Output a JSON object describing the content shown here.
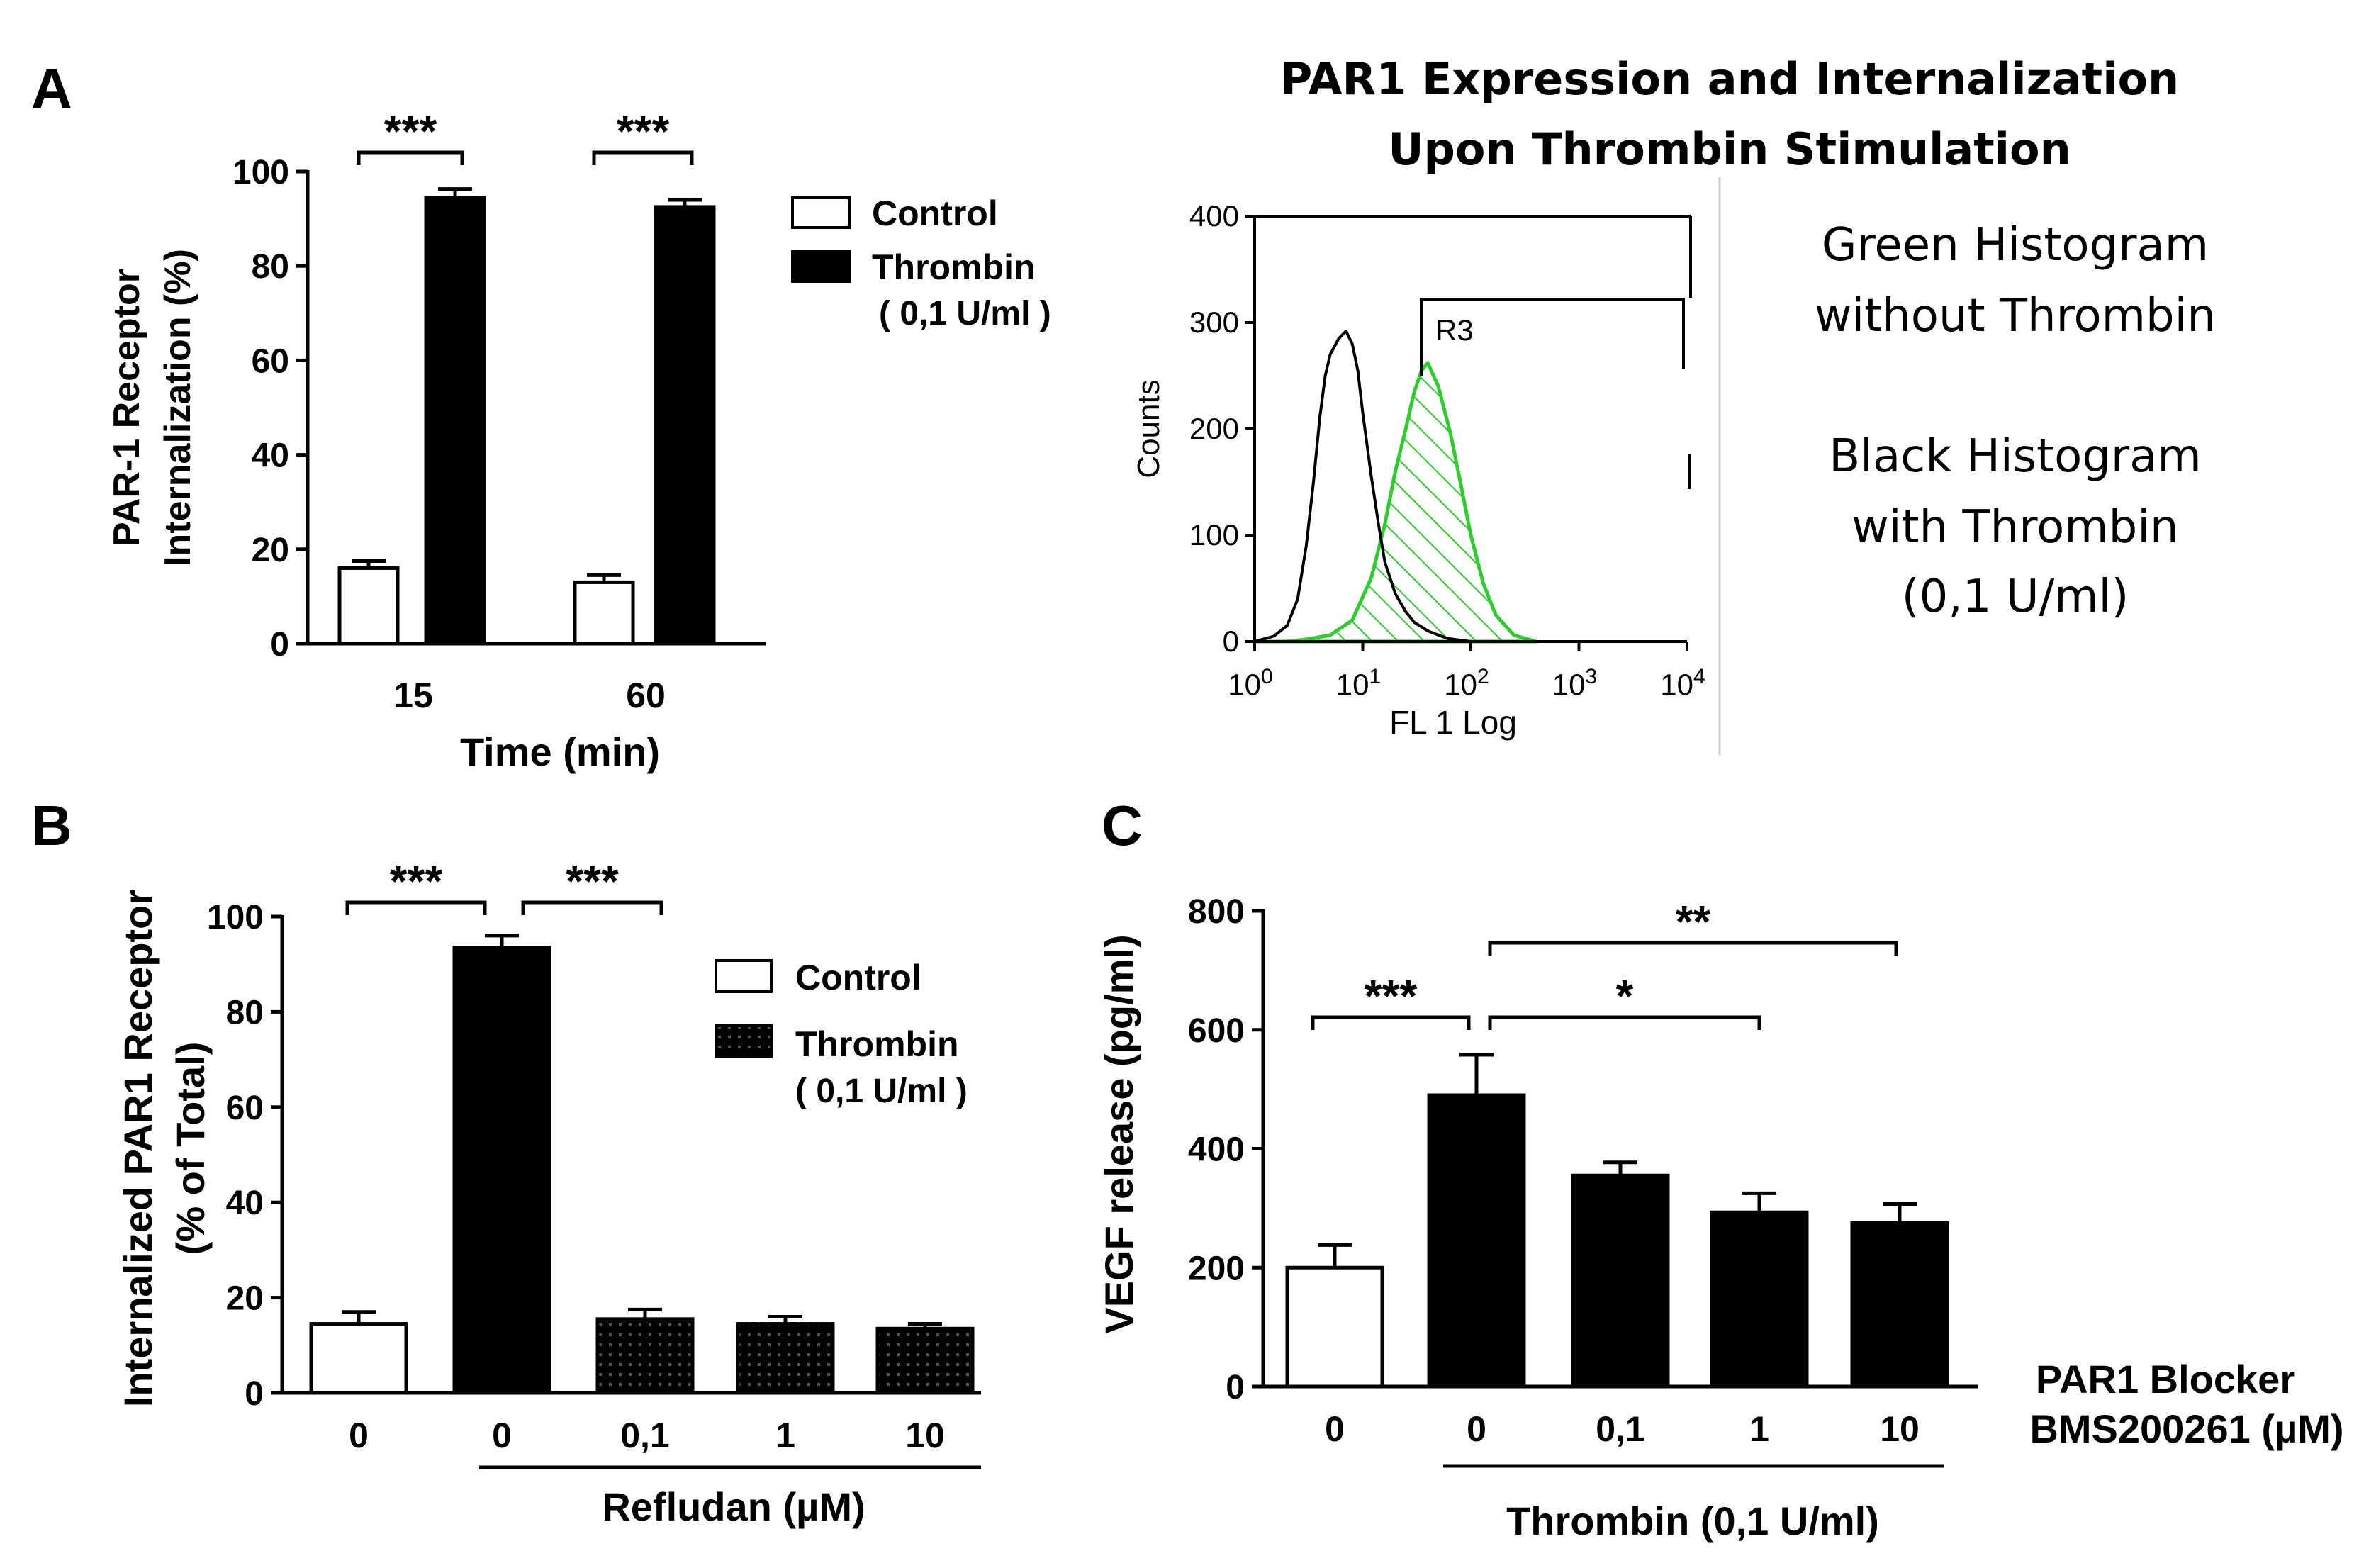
{
  "panels": {
    "A": {
      "letter": "A"
    },
    "B": {
      "letter": "B"
    },
    "C": {
      "letter": "C"
    }
  },
  "chart_data": [
    {
      "id": "A",
      "type": "bar",
      "ylabel_line1": "PAR-1 Receptor",
      "ylabel_line2": "Internalization (%)",
      "xlabel": "Time (min)",
      "categories": [
        "15",
        "60"
      ],
      "ylim": [
        0,
        100
      ],
      "yticks": [
        0,
        20,
        40,
        60,
        80,
        100
      ],
      "series": [
        {
          "name": "Control",
          "values": [
            16,
            13
          ],
          "errors": [
            1.5,
            1.5
          ],
          "fill": "#ffffff"
        },
        {
          "name": "Thrombin",
          "values": [
            94.5,
            92.5
          ],
          "errors": [
            1.8,
            1.5
          ],
          "fill": "#000000"
        }
      ],
      "legend": {
        "control": "Control",
        "thrombin": "Thrombin",
        "thrombin_dose": "( 0,1 U/ml )",
        "placement": "right"
      },
      "significance": [
        "***",
        "***"
      ]
    },
    {
      "id": "B",
      "type": "bar",
      "ylabel_line1": "Internalized PAR1 Receptor",
      "ylabel_line2": "(% of Total)",
      "xlabel": "Refludan (µM)",
      "categories": [
        "0",
        "0",
        "0,1",
        "1",
        "10"
      ],
      "ylim": [
        0,
        100
      ],
      "yticks": [
        0,
        20,
        40,
        60,
        80,
        100
      ],
      "values": [
        14.5,
        93.5,
        15.5,
        14.5,
        13.5
      ],
      "errors": [
        2.5,
        2.5,
        2.0,
        1.5,
        1.0
      ],
      "bar_fills": [
        "white",
        "black",
        "pattern",
        "pattern",
        "pattern"
      ],
      "legend": {
        "control": "Control",
        "thrombin": "Thrombin",
        "thrombin_dose": "( 0,1 U/ml )",
        "placement": "right"
      },
      "significance": [
        "***",
        "***"
      ]
    },
    {
      "id": "C",
      "type": "bar",
      "ylabel": "VEGF release (pg/ml)",
      "xlabel": "Thrombin (0,1 U/ml)",
      "categories": [
        "0",
        "0",
        "0,1",
        "1",
        "10"
      ],
      "ylim": [
        0,
        800
      ],
      "yticks": [
        0,
        200,
        400,
        600,
        800
      ],
      "values": [
        200,
        490,
        355,
        293,
        275
      ],
      "errors": [
        38,
        68,
        22,
        32,
        32
      ],
      "bar_fills": [
        "white",
        "black",
        "black",
        "black",
        "black"
      ],
      "blocker_label_line1": "PAR1 Blocker",
      "blocker_label_line2": "BMS200261 (µM)",
      "significance": [
        "***",
        "**",
        "*"
      ]
    },
    {
      "id": "flow",
      "type": "area",
      "title_line1": "PAR1 Expression and Internalization",
      "title_line2": "Upon Thrombin Stimulation",
      "ylabel": "Counts",
      "xlabel": "FL 1 Log",
      "ylim": [
        0,
        400
      ],
      "yticks": [
        "0",
        "100",
        "200",
        "300",
        "400"
      ],
      "xscale": "log",
      "xlim": [
        1,
        10000
      ],
      "xtick_bases": [
        "10",
        "10",
        "10",
        "10",
        "10"
      ],
      "xtick_exps": [
        "0",
        "1",
        "2",
        "3",
        "4"
      ],
      "gate_label": "R3",
      "series": [
        {
          "name": "without Thrombin",
          "color": "#2ecc2e",
          "x": [
            1,
            2,
            3,
            5,
            8,
            12,
            16,
            20,
            25,
            30,
            35,
            40,
            50,
            65,
            80,
            100,
            130,
            170,
            250,
            400
          ],
          "y": [
            0,
            0,
            2,
            6,
            20,
            60,
            110,
            160,
            200,
            235,
            255,
            262,
            240,
            195,
            150,
            100,
            55,
            25,
            6,
            0
          ]
        },
        {
          "name": "with Thrombin",
          "color": "#000000",
          "x": [
            1,
            1.5,
            2,
            2.5,
            3,
            3.5,
            4,
            4.5,
            5,
            6,
            7,
            8,
            9,
            10,
            12,
            14,
            16,
            20,
            25,
            30,
            40,
            60,
            100
          ],
          "y": [
            0,
            5,
            15,
            40,
            90,
            150,
            210,
            250,
            270,
            285,
            292,
            280,
            255,
            215,
            155,
            110,
            75,
            45,
            28,
            18,
            10,
            3,
            0
          ]
        }
      ]
    }
  ],
  "annotations": {
    "green_line1": "Green Histogram",
    "green_line2": "without Thrombin",
    "black_line1": "Black Histogram",
    "black_line2": "with Thrombin",
    "black_line3": "(0,1 U/ml)"
  }
}
